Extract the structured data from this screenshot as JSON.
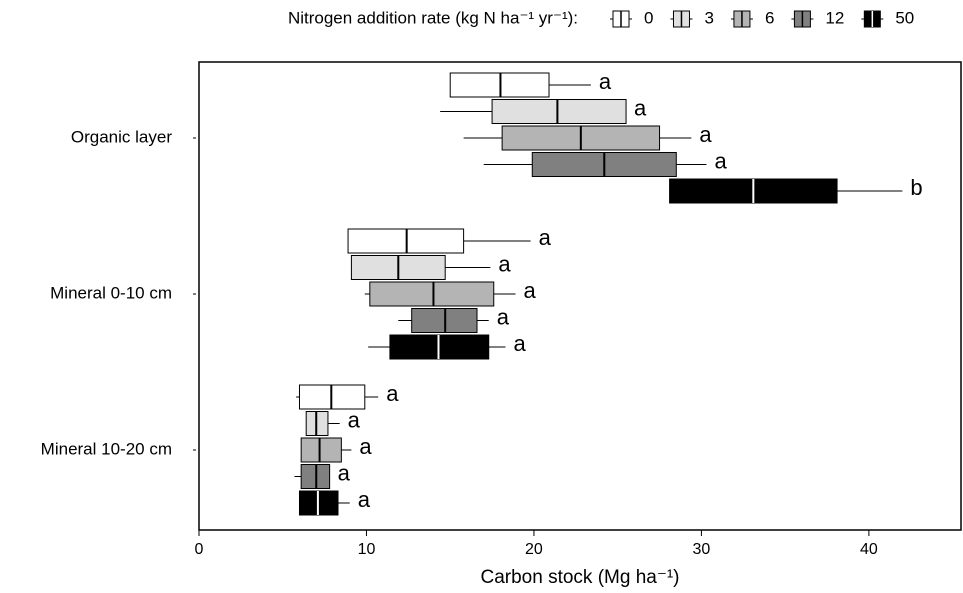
{
  "chart_data": {
    "type": "boxplot",
    "orientation": "horizontal",
    "legend_title": "Nitrogen addition rate (kg N ha⁻¹ yr⁻¹):",
    "x_label": "Carbon stock (Mg ha⁻¹)",
    "categories": [
      "Organic layer",
      "Mineral 0-10 cm",
      "Mineral 10-20 cm"
    ],
    "xlim": [
      0,
      45.5
    ],
    "xticks": [
      0,
      10,
      20,
      30,
      40
    ],
    "legend_position": "top",
    "series": [
      {
        "name": "0",
        "color": "#ffffff",
        "min": [
          15.0,
          8.9,
          5.8
        ],
        "q1": [
          15.0,
          8.9,
          6.0
        ],
        "median": [
          18.0,
          12.4,
          7.9
        ],
        "q3": [
          20.9,
          15.8,
          9.9
        ],
        "max": [
          23.4,
          19.8,
          10.7
        ],
        "letters": [
          "a",
          "a",
          "a"
        ]
      },
      {
        "name": "3",
        "color": "#e0e0e0",
        "min": [
          14.4,
          9.1,
          6.4
        ],
        "q1": [
          17.5,
          9.1,
          6.4
        ],
        "median": [
          21.4,
          11.9,
          7.0
        ],
        "q3": [
          25.5,
          14.7,
          7.7
        ],
        "max": [
          25.5,
          17.4,
          8.4
        ],
        "letters": [
          "a",
          "a",
          "a"
        ]
      },
      {
        "name": "6",
        "color": "#b4b4b4",
        "min": [
          15.8,
          9.9,
          6.1
        ],
        "q1": [
          18.1,
          10.2,
          6.1
        ],
        "median": [
          22.8,
          14.0,
          7.2
        ],
        "q3": [
          27.5,
          17.6,
          8.5
        ],
        "max": [
          29.4,
          18.9,
          9.1
        ],
        "letters": [
          "a",
          "a",
          "a"
        ]
      },
      {
        "name": "12",
        "color": "#808080",
        "min": [
          17.0,
          11.9,
          5.7
        ],
        "q1": [
          19.9,
          12.7,
          6.1
        ],
        "median": [
          24.2,
          14.7,
          7.0
        ],
        "q3": [
          28.5,
          16.6,
          7.8
        ],
        "max": [
          30.3,
          17.3,
          7.8
        ],
        "letters": [
          "a",
          "a",
          "a"
        ]
      },
      {
        "name": "50",
        "color": "#000000",
        "min": [
          28.1,
          10.1,
          6.0
        ],
        "q1": [
          28.1,
          11.4,
          6.0
        ],
        "median": [
          33.1,
          14.3,
          7.1
        ],
        "q3": [
          38.1,
          17.3,
          8.3
        ],
        "max": [
          42.0,
          18.3,
          9.0
        ],
        "letters": [
          "b",
          "a",
          "a"
        ]
      }
    ]
  }
}
